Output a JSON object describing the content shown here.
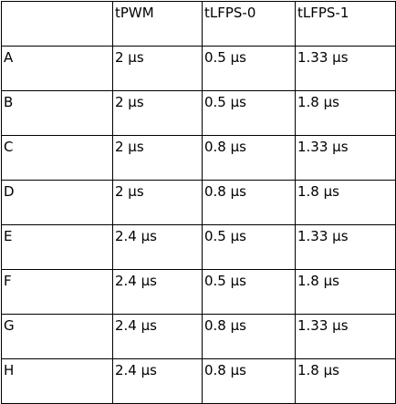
{
  "table": {
    "header": [
      "",
      "tPWM",
      "tLFPS-0",
      "tLFPS-1"
    ],
    "rows": [
      [
        "A",
        "2 µs",
        "0.5 µs",
        "1.33 µs"
      ],
      [
        "B",
        "2 µs",
        "0.5 µs",
        "1.8 µs"
      ],
      [
        "C",
        "2 µs",
        "0.8 µs",
        "1.33 µs"
      ],
      [
        "D",
        "2 µs",
        "0.8 µs",
        "1.8 µs"
      ],
      [
        "E",
        "2.4 µs",
        "0.5 µs",
        "1.33 µs"
      ],
      [
        "F",
        "2.4 µs",
        "0.5 µs",
        "1.8 µs"
      ],
      [
        "G",
        "2.4 µs",
        "0.8 µs",
        "1.33 µs"
      ],
      [
        "H",
        "2.4 µs",
        "0.8 µs",
        "1.8 µs"
      ]
    ]
  }
}
